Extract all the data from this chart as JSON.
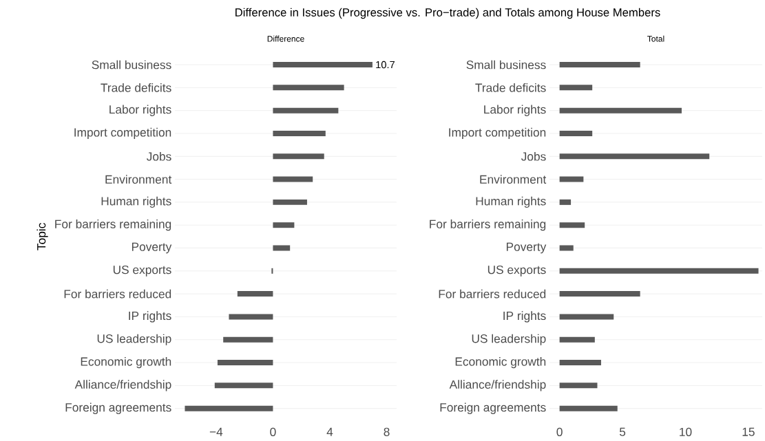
{
  "chart_data": [
    {
      "type": "bar",
      "orientation": "horizontal",
      "title": "Difference in Issues (Progressive vs. Pro−trade) and Totals among House Members",
      "subtitle": "Difference",
      "ylabel": "Topic",
      "color": "#595959",
      "grid": "y",
      "categories": [
        "Small business",
        "Trade deficits",
        "Labor rights",
        "Import competition",
        "Jobs",
        "Environment",
        "Human rights",
        "For barriers remaining",
        "Poverty",
        "US exports",
        "For barriers reduced",
        "IP rights",
        "US leadership",
        "Economic growth",
        "Alliance/friendship",
        "Foreign agreements"
      ],
      "values": [
        7.0,
        5.0,
        4.6,
        3.7,
        3.6,
        2.8,
        2.4,
        1.5,
        1.2,
        -0.1,
        -2.5,
        -3.1,
        -3.5,
        -3.9,
        -4.1,
        -6.2
      ],
      "xlim": [
        -6.9,
        8.7
      ],
      "xticks": [
        {
          "value": -4,
          "label": "−4"
        },
        0,
        4,
        8
      ],
      "annotations": [
        {
          "text": "10.7",
          "x": 7.0,
          "y": "Small business"
        }
      ]
    },
    {
      "type": "bar",
      "orientation": "horizontal",
      "title": "Total",
      "color": "#595959",
      "grid": "y",
      "categories": [
        "Small business",
        "Trade deficits",
        "Labor rights",
        "Import competition",
        "Jobs",
        "Environment",
        "Human rights",
        "For barriers remaining",
        "Poverty",
        "US exports",
        "For barriers reduced",
        "IP rights",
        "US leadership",
        "Economic growth",
        "Alliance/friendship",
        "Foreign agreements"
      ],
      "values": [
        6.4,
        2.6,
        9.7,
        2.6,
        11.9,
        1.9,
        0.9,
        2.0,
        1.1,
        15.8,
        6.4,
        4.3,
        2.8,
        3.3,
        3.0,
        4.6
      ],
      "xlim": [
        -0.8,
        16.1
      ],
      "xticks": [
        0,
        5,
        10,
        15
      ]
    }
  ]
}
